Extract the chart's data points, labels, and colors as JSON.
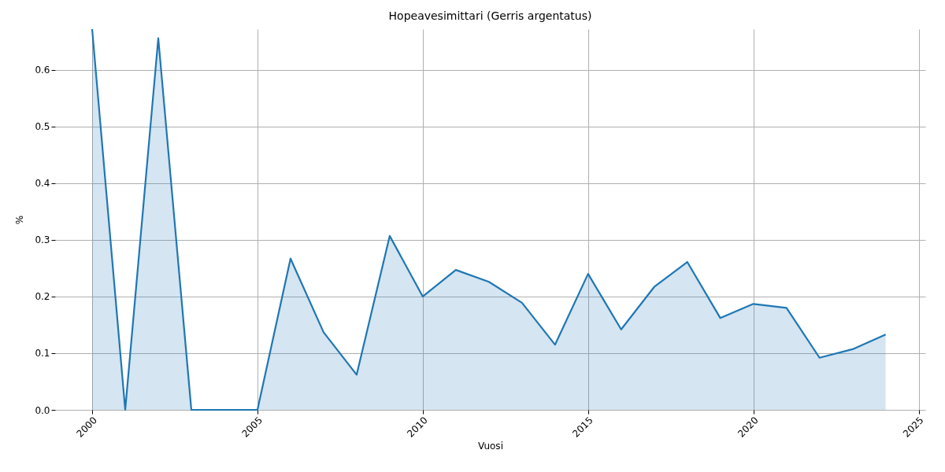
{
  "chart_data": {
    "type": "area",
    "title": "Hopeavesimittari (Gerris argentatus)",
    "xlabel": "Vuosi",
    "ylabel": "%",
    "x": [
      2000,
      2001,
      2002,
      2003,
      2004,
      2005,
      2006,
      2007,
      2008,
      2009,
      2010,
      2011,
      2012,
      2013,
      2014,
      2015,
      2016,
      2017,
      2018,
      2019,
      2020,
      2021,
      2022,
      2023,
      2024
    ],
    "series": [
      {
        "color": "#1f77b4",
        "values": [
          0.672,
          0,
          0.656,
          0,
          0,
          0,
          0.267,
          0.137,
          0.062,
          0.307,
          0.2,
          0.247,
          0.226,
          0.189,
          0.115,
          0.24,
          0.142,
          0.217,
          0.261,
          0.162,
          0.187,
          0.18,
          0.092,
          0.107,
          0.133
        ]
      }
    ],
    "xlim": [
      1998.88,
      2025.2
    ],
    "xticks": [
      2000,
      2005,
      2010,
      2015,
      2020,
      2025
    ],
    "ylim": [
      0,
      0.672
    ],
    "yticks": [
      {
        "value": 0,
        "label": "0.0"
      },
      {
        "value": 0.1,
        "label": "0.1"
      },
      {
        "value": 0.2,
        "label": "0.2"
      },
      {
        "value": 0.3,
        "label": "0.3"
      },
      {
        "value": 0.4,
        "label": "0.4"
      },
      {
        "value": 0.5,
        "label": "0.5"
      },
      {
        "value": 0.6,
        "label": "0.6"
      }
    ],
    "grid": true
  }
}
